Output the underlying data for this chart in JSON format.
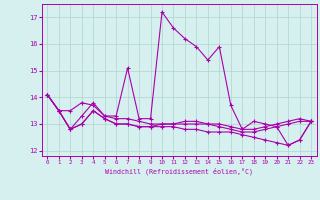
{
  "xlabel": "Windchill (Refroidissement éolien,°C)",
  "x_ticks": [
    0,
    1,
    2,
    3,
    4,
    5,
    6,
    7,
    8,
    9,
    10,
    11,
    12,
    13,
    14,
    15,
    16,
    17,
    18,
    19,
    20,
    21,
    22,
    23
  ],
  "ylim": [
    11.8,
    17.5
  ],
  "yticks": [
    12,
    13,
    14,
    15,
    16,
    17
  ],
  "line_color": "#aa00aa",
  "bg_color": "#d6f0f0",
  "grid_color": "#b0d4cc",
  "series": {
    "line1": [
      14.1,
      13.5,
      13.5,
      13.8,
      13.7,
      13.3,
      13.3,
      15.1,
      13.2,
      13.2,
      17.2,
      16.6,
      16.2,
      15.9,
      15.4,
      15.9,
      13.7,
      12.8,
      13.1,
      13.0,
      12.9,
      12.2,
      12.4,
      13.1
    ],
    "line2": [
      14.1,
      13.5,
      12.8,
      13.3,
      13.8,
      13.3,
      13.2,
      13.2,
      13.1,
      13.0,
      13.0,
      13.0,
      13.0,
      13.0,
      13.0,
      13.0,
      12.9,
      12.8,
      12.8,
      12.9,
      13.0,
      13.1,
      13.2,
      13.1
    ],
    "line3": [
      14.1,
      13.5,
      12.8,
      13.0,
      13.5,
      13.2,
      13.0,
      13.0,
      12.9,
      12.9,
      12.9,
      12.9,
      12.8,
      12.8,
      12.7,
      12.7,
      12.7,
      12.6,
      12.5,
      12.4,
      12.3,
      12.2,
      12.4,
      13.1
    ],
    "line4": [
      14.1,
      13.5,
      12.8,
      13.0,
      13.5,
      13.2,
      13.0,
      13.0,
      12.9,
      12.9,
      13.0,
      13.0,
      13.1,
      13.1,
      13.0,
      12.9,
      12.8,
      12.7,
      12.7,
      12.8,
      12.9,
      13.0,
      13.1,
      13.1
    ]
  }
}
